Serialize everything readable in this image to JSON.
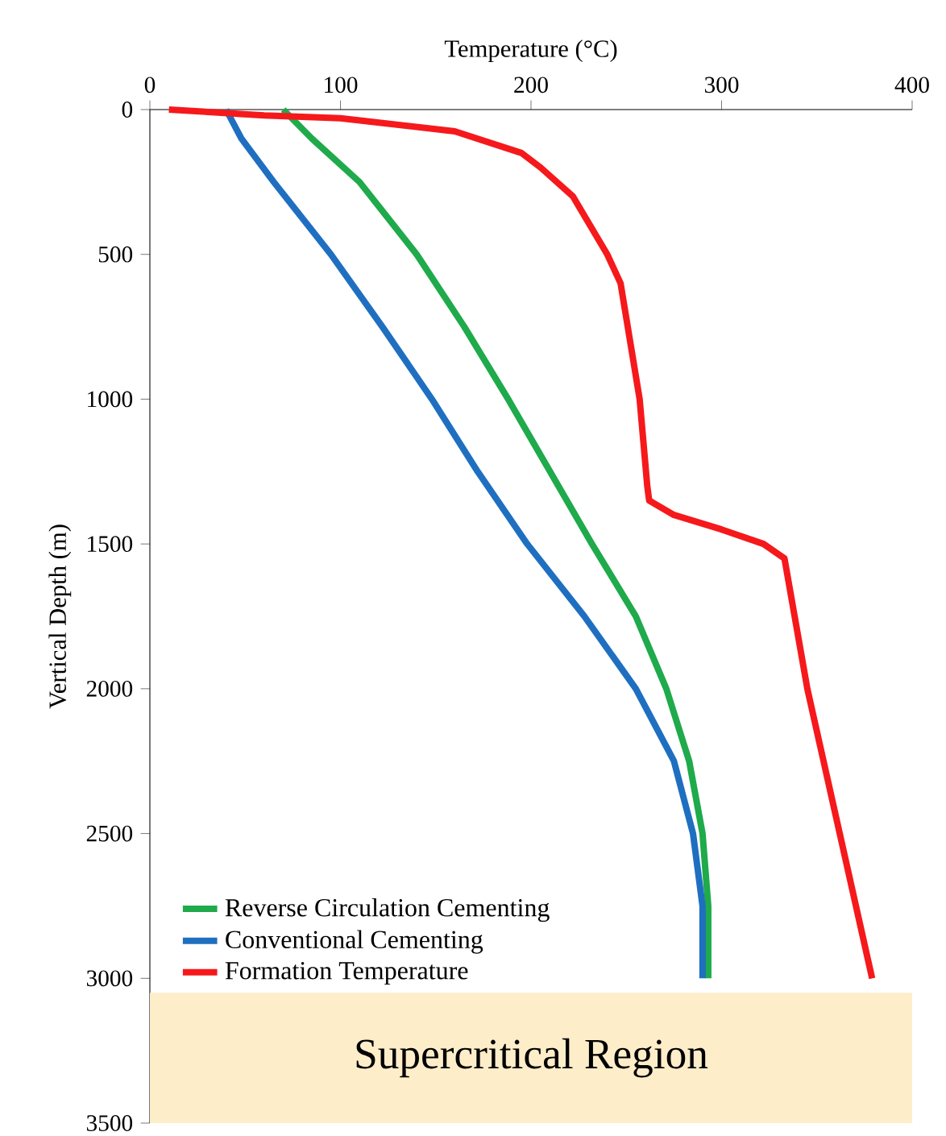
{
  "chart_data": {
    "type": "line",
    "xlabel": "Temperature (°C)",
    "ylabel": "Vertical Depth (m)",
    "xlim": [
      0,
      400
    ],
    "xticks": [
      0,
      100,
      200,
      300,
      400
    ],
    "ylim": [
      3500,
      0
    ],
    "yticks": [
      0,
      500,
      1000,
      1500,
      2000,
      2500,
      3000,
      3500
    ],
    "legend": "bottom left",
    "grid": false,
    "marker": "none",
    "line_style": "solid",
    "bands": [
      {
        "axis": "y",
        "from": 3050,
        "to": 3500,
        "label": "Supercritical Region",
        "color": "#fdedc9"
      }
    ],
    "series": [
      {
        "name": "Reverse Circulation Cementing",
        "color": "#1faa4b",
        "x": [
          70,
          85,
          110,
          140,
          165,
          188,
          210,
          232,
          255,
          271,
          283,
          290,
          293,
          293
        ],
        "values": [
          0,
          100,
          250,
          500,
          750,
          1000,
          1250,
          1500,
          1750,
          2000,
          2250,
          2500,
          2750,
          3000
        ]
      },
      {
        "name": "Conventional Cementing",
        "color": "#1f6fc1",
        "x": [
          40,
          48,
          65,
          95,
          122,
          148,
          172,
          198,
          228,
          255,
          275,
          285,
          290,
          290
        ],
        "values": [
          0,
          100,
          250,
          500,
          750,
          1000,
          1250,
          1500,
          1750,
          2000,
          2250,
          2500,
          2750,
          3000
        ]
      },
      {
        "name": "Formation Temperature",
        "color": "#f5191c",
        "x": [
          10,
          60,
          100,
          160,
          195,
          205,
          222,
          240,
          247,
          257,
          261,
          262,
          275,
          300,
          322,
          333,
          345,
          362,
          379
        ],
        "values": [
          0,
          20,
          30,
          75,
          150,
          200,
          300,
          500,
          600,
          1000,
          1300,
          1350,
          1400,
          1450,
          1500,
          1550,
          2000,
          2500,
          3000
        ]
      }
    ]
  }
}
